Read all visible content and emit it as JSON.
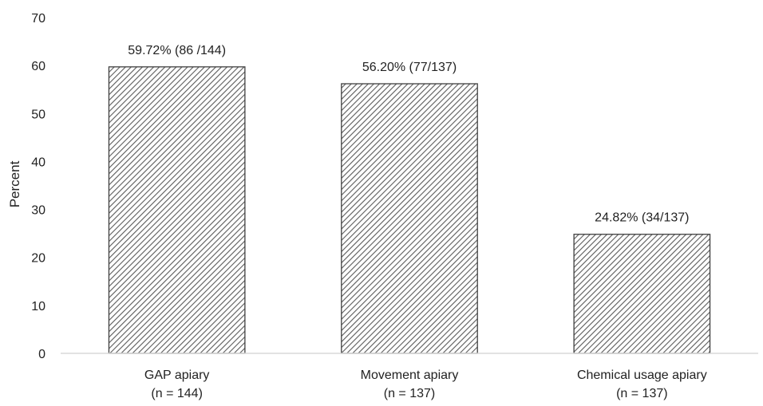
{
  "chart_data": {
    "type": "bar",
    "title": "",
    "xlabel": "",
    "ylabel": "Percent",
    "ylim": [
      0,
      70
    ],
    "yticks": [
      0,
      10,
      20,
      30,
      40,
      50,
      60,
      70
    ],
    "categories": [
      {
        "label": "GAP apiary",
        "sublabel": "(n = 144)"
      },
      {
        "label": "Movement apiary",
        "sublabel": "(n = 137)"
      },
      {
        "label": "Chemical usage apiary",
        "sublabel": "(n = 137)"
      }
    ],
    "values": [
      59.72,
      56.2,
      24.82
    ],
    "data_labels": [
      "59.72% (86 /144)",
      "56.20% (77/137)",
      "24.82% (34/137)"
    ],
    "grid": false,
    "legend": "none",
    "bar_pattern": "diagonal-hatch",
    "colors": {
      "bar_stroke": "#404040",
      "hatch": "#5a5a5a",
      "axis": "#d9d9d9",
      "text": "#222222"
    }
  }
}
